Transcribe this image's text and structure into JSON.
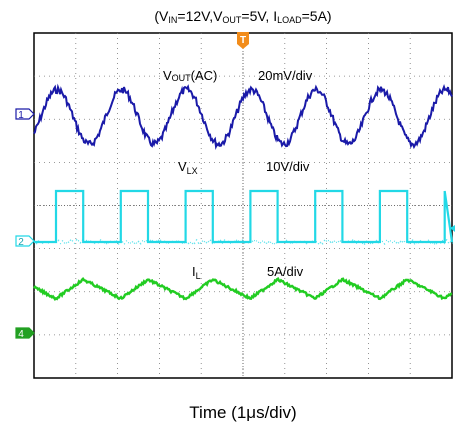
{
  "chart_data": {
    "type": "line",
    "title": {
      "prefix": "(V",
      "vin_sub": "IN",
      "vin_val": "=12V,V",
      "vout_sub": "OUT",
      "vout_val": "=5V, I",
      "iload_sub": "LOAD",
      "iload_val": "=5A)"
    },
    "xlabel": "Time (1μs/div)",
    "x_unit": "μs",
    "x_per_div": 1,
    "divisions": {
      "x": 10,
      "y": 8
    },
    "grid": true,
    "trigger_marker": "T",
    "channels": [
      {
        "id": "1",
        "color": "#1a1aa8",
        "label_main": "V",
        "label_sub": "OUT",
        "label_tail": "(AC)",
        "scale": "20mV/div",
        "waveform": "sine",
        "period_div": 1.55,
        "amplitude_div": 0.9,
        "ripple_mV_pp": 36
      },
      {
        "id": "2",
        "color": "#22d8e6",
        "label_main": "V",
        "label_sub": "LX",
        "label_tail": "",
        "scale": "10V/div",
        "waveform": "square",
        "period_div": 1.55,
        "duty_cycle": 0.42,
        "high_V": 12,
        "low_V": 0
      },
      {
        "id": "4",
        "color": "#22cc22",
        "label_main": "I",
        "label_sub": "L",
        "label_tail": "",
        "scale": "5A/div",
        "waveform": "triangle",
        "period_div": 1.55,
        "amplitude_div": 0.22,
        "average_A": 5
      }
    ],
    "channel_markers": [
      {
        "id": "1",
        "color": "#1a1aa8",
        "style": "outline"
      },
      {
        "id": "2",
        "color": "#22d8e6",
        "style": "outline"
      },
      {
        "id": "4",
        "color": "#22a022",
        "style": "filled"
      }
    ]
  }
}
